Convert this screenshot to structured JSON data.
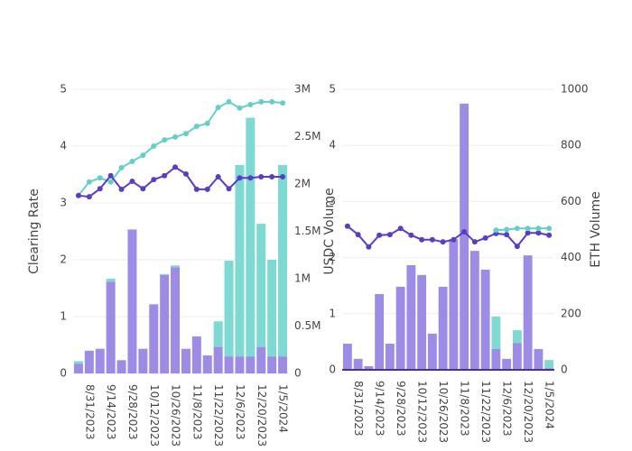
{
  "chart_data": [
    {
      "type": "bar_line",
      "ylabel": "Clearing Rate",
      "y2label": "USDC Volume",
      "categories": [
        null,
        "8/31/2023",
        null,
        "9/14/2023",
        null,
        "9/28/2023",
        null,
        "10/12/2023",
        null,
        "10/26/2023",
        null,
        "11/8/2023",
        null,
        "11/22/2023",
        null,
        "12/6/2023",
        null,
        "12/20/2023",
        null,
        "1/5/2024"
      ],
      "ylim": [
        0,
        5
      ],
      "yticks": [
        0,
        1,
        2,
        3,
        4,
        5
      ],
      "y2lim": [
        0,
        3000000
      ],
      "y2ticks": [
        0,
        {
          "value": 500000,
          "label": "0.5M"
        },
        {
          "value": 1000000,
          "label": "1M"
        },
        {
          "value": 1500000,
          "label": "1.5M"
        },
        {
          "value": 2000000,
          "label": "2M"
        },
        {
          "value": 2500000,
          "label": "2.5M"
        },
        {
          "value": 3000000,
          "label": "3M"
        }
      ],
      "grid": true,
      "series": [
        {
          "kind": "bar",
          "axis": "y2",
          "color": "#9d8ce6",
          "values": [
            100000,
            240000,
            260000,
            970000,
            140000,
            1520000,
            260000,
            730000,
            1040000,
            1120000,
            260000,
            390000,
            190000,
            280000,
            180000,
            180000,
            180000,
            280000,
            180000,
            180000
          ]
        },
        {
          "kind": "bar",
          "axis": "y2",
          "color": "#7dd9d2",
          "values": [
            30000,
            0,
            0,
            30000,
            0,
            0,
            0,
            0,
            10000,
            20000,
            0,
            0,
            0,
            270000,
            1010000,
            2020000,
            2520000,
            1300000,
            1020000,
            2020000
          ]
        },
        {
          "kind": "line",
          "color": "#62d0c8",
          "values": [
            3.13,
            3.37,
            3.44,
            3.37,
            3.62,
            3.73,
            3.84,
            4.0,
            4.11,
            4.16,
            4.22,
            4.35,
            4.4,
            4.68,
            4.78,
            4.67,
            4.73,
            4.78,
            4.78,
            4.76
          ]
        },
        {
          "kind": "line",
          "color": "#5a3cc6",
          "values": [
            3.13,
            3.11,
            3.25,
            3.48,
            3.24,
            3.38,
            3.25,
            3.41,
            3.48,
            3.63,
            3.51,
            3.24,
            3.24,
            3.46,
            3.25,
            3.44,
            3.44,
            3.46,
            3.46,
            3.46
          ]
        }
      ]
    },
    {
      "type": "bar_line",
      "y2label": "ETH Volume",
      "categories": [
        null,
        "8/31/2023",
        null,
        "9/14/2023",
        null,
        "9/28/2023",
        null,
        "10/12/2023",
        null,
        "10/26/2023",
        null,
        "11/8/2023",
        null,
        "11/22/2023",
        null,
        "12/6/2023",
        null,
        "12/20/2023",
        null,
        "1/5/2024"
      ],
      "ylim": [
        0,
        5
      ],
      "yticks": [
        0,
        1,
        2,
        3,
        4,
        5
      ],
      "y2lim": [
        0,
        1000
      ],
      "y2ticks": [
        0,
        200,
        400,
        600,
        800,
        1000
      ],
      "grid": true,
      "zeroline": true,
      "series": [
        {
          "kind": "bar",
          "axis": "y2",
          "color": "#9d8ce6",
          "values": [
            93,
            39,
            13,
            270,
            93,
            296,
            373,
            338,
            129,
            296,
            466,
            949,
            424,
            357,
            74,
            39,
            96,
            408,
            74,
            6
          ]
        },
        {
          "kind": "bar",
          "axis": "y2",
          "color": "#7dd9d2",
          "values": [
            0,
            0,
            0,
            0,
            0,
            0,
            0,
            0,
            0,
            0,
            0,
            0,
            0,
            0,
            116,
            0,
            45,
            0,
            0,
            29
          ]
        },
        {
          "kind": "line",
          "color": "#5a3cc6",
          "values": [
            2.56,
            2.41,
            2.19,
            2.4,
            2.41,
            2.52,
            2.4,
            2.32,
            2.32,
            2.28,
            2.32,
            2.46,
            2.28,
            2.35,
            2.43,
            2.41,
            2.2,
            2.44,
            2.44,
            2.4
          ]
        },
        {
          "kind": "line",
          "color": "#62d0c8",
          "values": [
            null,
            null,
            null,
            null,
            null,
            null,
            null,
            null,
            null,
            null,
            null,
            null,
            null,
            null,
            2.49,
            2.5,
            2.52,
            2.52,
            2.52,
            2.52
          ]
        }
      ]
    }
  ]
}
